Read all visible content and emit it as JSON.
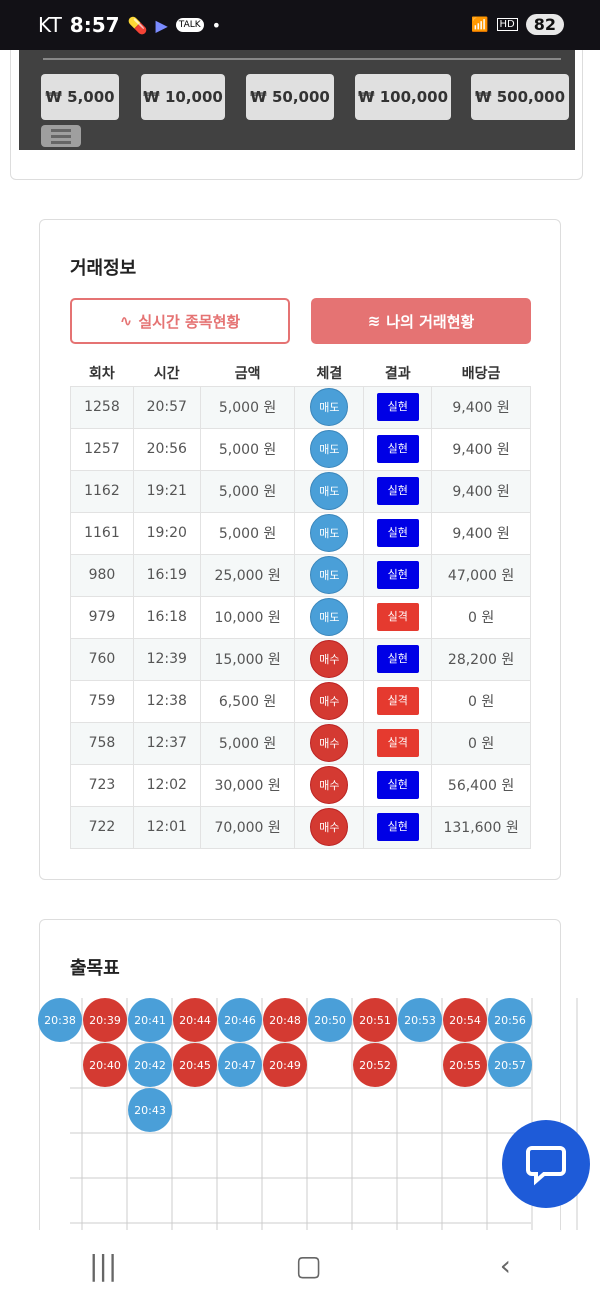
{
  "status": {
    "carrier": "KT",
    "time": "8:57",
    "battery": "82",
    "talk": "TALK"
  },
  "amounts": [
    "₩ 5,000",
    "₩ 10,000",
    "₩ 50,000",
    "₩ 100,000",
    "₩ 500,000"
  ],
  "trade": {
    "title": "거래정보",
    "tab_live": "실시간 종목현황",
    "tab_mine": "나의 거래현황",
    "headers": [
      "회차",
      "시간",
      "금액",
      "체결",
      "결과",
      "배당금"
    ],
    "rows": [
      [
        "1258",
        "20:57",
        "5,000 원",
        "매도",
        "실현",
        "9,400 원"
      ],
      [
        "1257",
        "20:56",
        "5,000 원",
        "매도",
        "실현",
        "9,400 원"
      ],
      [
        "1162",
        "19:21",
        "5,000 원",
        "매도",
        "실현",
        "9,400 원"
      ],
      [
        "1161",
        "19:20",
        "5,000 원",
        "매도",
        "실현",
        "9,400 원"
      ],
      [
        "980",
        "16:19",
        "25,000 원",
        "매도",
        "실현",
        "47,000 원"
      ],
      [
        "979",
        "16:18",
        "10,000 원",
        "매도",
        "실격",
        "0 원"
      ],
      [
        "760",
        "12:39",
        "15,000 원",
        "매수",
        "실현",
        "28,200 원"
      ],
      [
        "759",
        "12:38",
        "6,500 원",
        "매수",
        "실격",
        "0 원"
      ],
      [
        "758",
        "12:37",
        "5,000 원",
        "매수",
        "실격",
        "0 원"
      ],
      [
        "723",
        "12:02",
        "30,000 원",
        "매수",
        "실현",
        "56,400 원"
      ],
      [
        "722",
        "12:01",
        "70,000 원",
        "매수",
        "실현",
        "131,600 원"
      ]
    ]
  },
  "chart": {
    "title": "출목표",
    "columns": [
      {
        "type": "sell",
        "times": [
          "20:38"
        ]
      },
      {
        "type": "buy",
        "times": [
          "20:39",
          "20:40"
        ]
      },
      {
        "type": "sell",
        "times": [
          "20:41",
          "20:42",
          "20:43"
        ]
      },
      {
        "type": "buy",
        "times": [
          "20:44",
          "20:45"
        ]
      },
      {
        "type": "sell",
        "times": [
          "20:46",
          "20:47"
        ]
      },
      {
        "type": "buy",
        "times": [
          "20:48",
          "20:49"
        ]
      },
      {
        "type": "sell",
        "times": [
          "20:50"
        ]
      },
      {
        "type": "buy",
        "times": [
          "20:51",
          "20:52"
        ]
      },
      {
        "type": "sell",
        "times": [
          "20:53"
        ]
      },
      {
        "type": "buy",
        "times": [
          "20:54",
          "20:55"
        ]
      },
      {
        "type": "sell",
        "times": [
          "20:56",
          "20:57"
        ]
      }
    ]
  },
  "colors": {
    "sell": "#4a9fd8",
    "buy": "#d43a32",
    "win": "#0000e6",
    "lose": "#e53a2f",
    "accent": "#e57373"
  }
}
